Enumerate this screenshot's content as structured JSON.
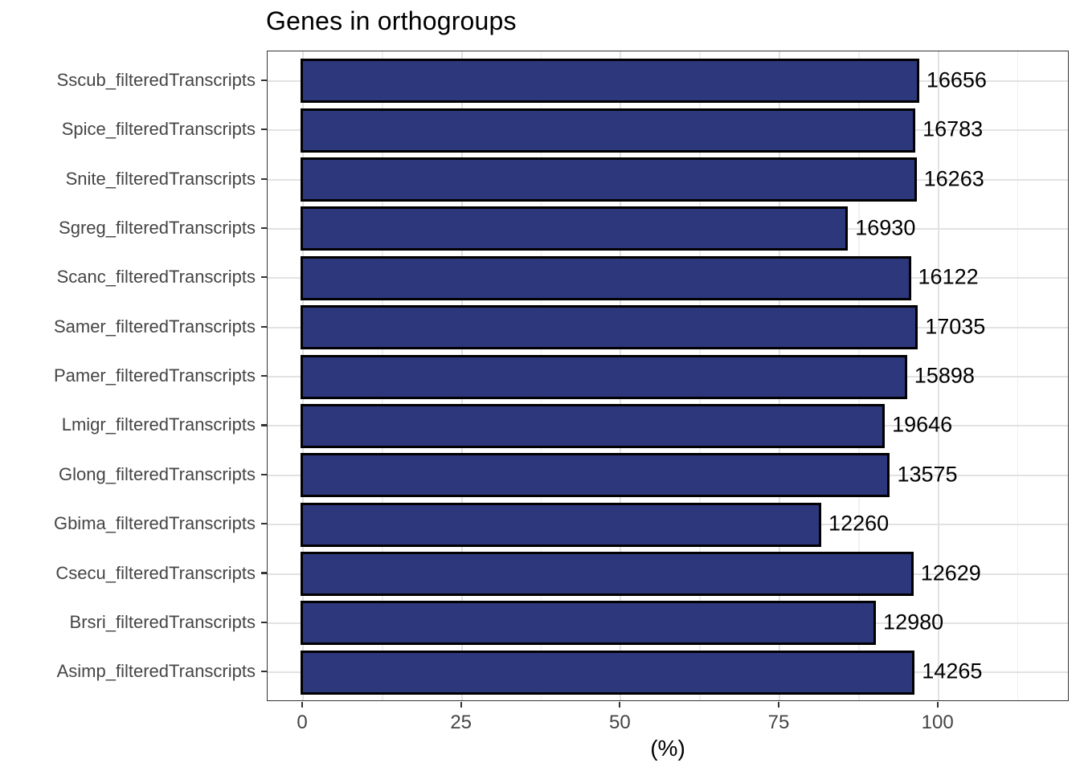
{
  "title": "Genes in orthogroups",
  "chart_data": {
    "type": "bar",
    "orientation": "horizontal",
    "title": "Genes in orthogroups",
    "xlabel": "(%)",
    "x_axis": {
      "major_ticks": [
        0,
        25,
        50,
        75,
        100
      ],
      "minor_ticks": [
        12.5,
        37.5,
        62.5,
        87.5,
        112.5
      ],
      "range": [
        -5.6,
        120.6
      ],
      "grid": true
    },
    "bars": [
      {
        "category": "Sscub_filteredTranscripts",
        "percent": 96.6,
        "count": 16656
      },
      {
        "category": "Spice_filteredTranscripts",
        "percent": 96.0,
        "count": 16783
      },
      {
        "category": "Snite_filteredTranscripts",
        "percent": 96.2,
        "count": 16263
      },
      {
        "category": "Sgreg_filteredTranscripts",
        "percent": 85.4,
        "count": 16930
      },
      {
        "category": "Scanc_filteredTranscripts",
        "percent": 95.3,
        "count": 16122
      },
      {
        "category": "Samer_filteredTranscripts",
        "percent": 96.4,
        "count": 17035
      },
      {
        "category": "Pamer_filteredTranscripts",
        "percent": 94.7,
        "count": 15898
      },
      {
        "category": "Lmigr_filteredTranscripts",
        "percent": 91.2,
        "count": 19646
      },
      {
        "category": "Glong_filteredTranscripts",
        "percent": 92.0,
        "count": 13575
      },
      {
        "category": "Gbima_filteredTranscripts",
        "percent": 81.2,
        "count": 12260
      },
      {
        "category": "Csecu_filteredTranscripts",
        "percent": 95.7,
        "count": 12629
      },
      {
        "category": "Brsri_filteredTranscripts",
        "percent": 89.8,
        "count": 12980
      },
      {
        "category": "Asimp_filteredTranscripts",
        "percent": 95.9,
        "count": 14265
      }
    ],
    "colors": {
      "bar_fill": "#2D377B",
      "bar_border": "#000000",
      "grid_major": "#e2e2e2",
      "grid_minor": "#f0f0f0",
      "panel_border": "#333333",
      "axis_text": "#454545",
      "text": "#000000"
    },
    "legend": null
  }
}
